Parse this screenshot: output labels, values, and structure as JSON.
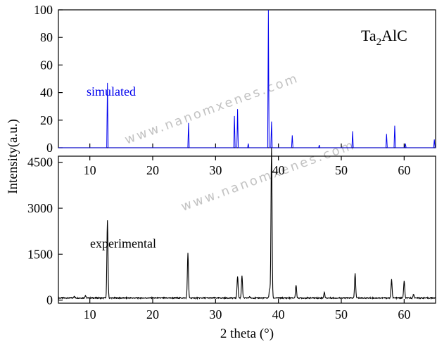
{
  "colors": {
    "simulated": "#0000ee",
    "experimental": "#000000",
    "axis": "#000000",
    "watermark": "#b8b8b8"
  },
  "watermark_text": "www.nanomxenes.com",
  "chart_data": [
    {
      "type": "line",
      "panel": "top",
      "title": "",
      "annotation": "Ta2AlC",
      "annotation_formula": {
        "base1": "Ta",
        "sub": "2",
        "base2": "AlC"
      },
      "series": [
        {
          "name": "simulated",
          "peaks": [
            [
              12.8,
              47
            ],
            [
              25.7,
              18
            ],
            [
              33.0,
              23
            ],
            [
              33.5,
              28
            ],
            [
              35.2,
              3
            ],
            [
              38.4,
              100
            ],
            [
              38.9,
              19
            ],
            [
              42.2,
              9
            ],
            [
              46.5,
              2
            ],
            [
              51.8,
              12
            ],
            [
              57.2,
              10
            ],
            [
              58.5,
              16
            ],
            [
              60.2,
              3
            ],
            [
              64.8,
              6
            ]
          ]
        }
      ],
      "xlim": [
        5,
        65
      ],
      "ylim": [
        0,
        100
      ],
      "yticks": [
        0,
        20,
        40,
        60,
        80,
        100
      ],
      "xticks": [
        10,
        20,
        30,
        40,
        50,
        60
      ],
      "ylabel": "",
      "xlabel": ""
    },
    {
      "type": "line",
      "panel": "bottom",
      "title": "",
      "series": [
        {
          "name": "experimental",
          "peaks": [
            [
              7.5,
              60
            ],
            [
              9.3,
              80
            ],
            [
              12.8,
              2520
            ],
            [
              25.6,
              1460
            ],
            [
              33.5,
              720
            ],
            [
              34.2,
              740
            ],
            [
              35.4,
              40
            ],
            [
              38.9,
              4900
            ],
            [
              38.6,
              300
            ],
            [
              42.8,
              430
            ],
            [
              47.3,
              180
            ],
            [
              52.2,
              800
            ],
            [
              58.0,
              600
            ],
            [
              60.0,
              560
            ],
            [
              61.5,
              120
            ]
          ],
          "baseline": 70
        }
      ],
      "xlim": [
        5,
        65
      ],
      "ylim": [
        -100,
        4700
      ],
      "yticks": [
        0,
        1500,
        3000,
        4500
      ],
      "xticks": [
        10,
        20,
        30,
        40,
        50,
        60
      ],
      "xlabel": "2 theta (°)"
    }
  ],
  "shared": {
    "ylabel": "Intensity(a.u.)",
    "xlabel": "2 theta (°)",
    "legend_labels": {
      "simulated": "simulated",
      "experimental": "experimental"
    }
  }
}
